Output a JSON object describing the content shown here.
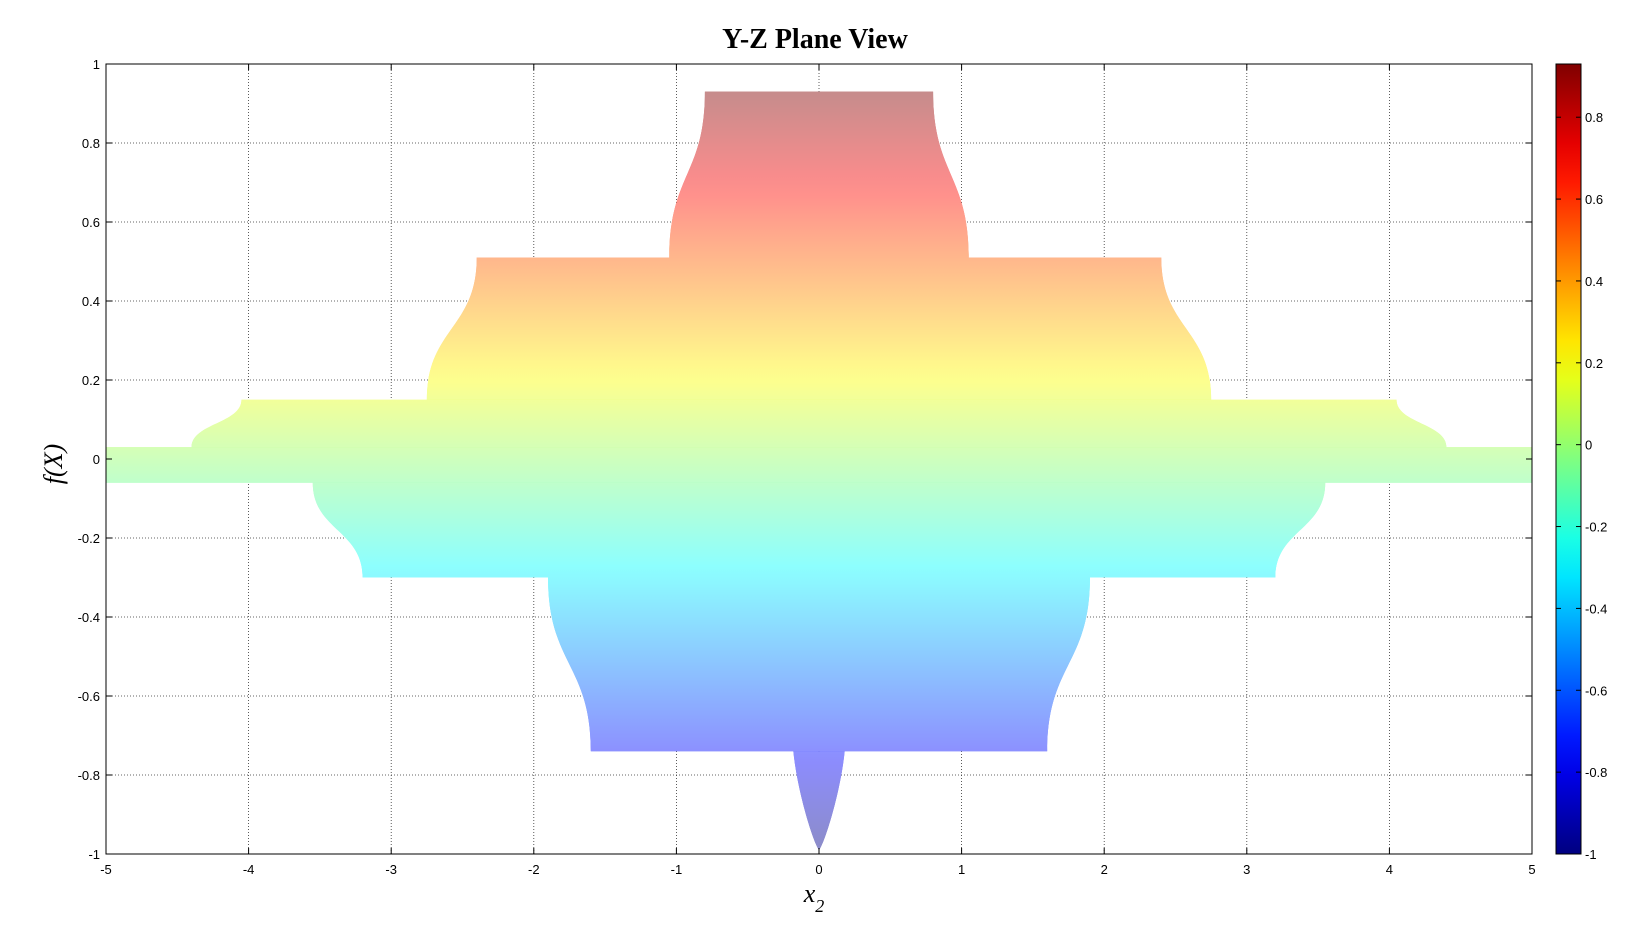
{
  "chart_data": {
    "type": "area",
    "title": "Y-Z Plane View",
    "xlabel": "x",
    "xlabel_subscript": "2",
    "ylabel": "f(X)",
    "xlim": [
      -5,
      5
    ],
    "ylim": [
      -1,
      1
    ],
    "grid": true,
    "x_ticks": [
      -5,
      -4,
      -3,
      -2,
      -1,
      0,
      1,
      2,
      3,
      4,
      5
    ],
    "x_tick_labels": [
      "-5",
      "-4",
      "-3",
      "-2",
      "-1",
      "0",
      "1",
      "2",
      "3",
      "4",
      "5"
    ],
    "y_ticks": [
      -1,
      -0.8,
      -0.6,
      -0.4,
      -0.2,
      0,
      0.2,
      0.4,
      0.6,
      0.8,
      1
    ],
    "y_tick_labels": [
      "-1",
      "-0.8",
      "-0.6",
      "-0.4",
      "-0.2",
      "0",
      "0.2",
      "0.4",
      "0.6",
      "0.8",
      "1"
    ],
    "colormap": "jet",
    "colorbar": {
      "range": [
        -1,
        0.93
      ],
      "ticks": [
        -1,
        -0.8,
        -0.6,
        -0.4,
        -0.2,
        0,
        0.2,
        0.4,
        0.6,
        0.8
      ],
      "tick_labels": [
        "-1",
        "-0.8",
        "-0.6",
        "-0.4",
        "-0.2",
        "0",
        "0.2",
        "0.4",
        "0.6",
        "0.8"
      ]
    },
    "bands": [
      {
        "bottom": -0.06,
        "top": 0.03,
        "x_top": [
          -5,
          5
        ],
        "x_bottom": [
          -5,
          5
        ]
      },
      {
        "bottom": 0.03,
        "top": 0.15,
        "x_top": [
          -4.05,
          4.05
        ],
        "x_bottom": [
          -4.4,
          4.4
        ]
      },
      {
        "bottom": -0.3,
        "top": -0.06,
        "x_top": [
          -3.55,
          3.55
        ],
        "x_bottom": [
          -3.2,
          3.2
        ]
      },
      {
        "bottom": 0.15,
        "top": 0.51,
        "x_top": [
          -2.4,
          2.4
        ],
        "x_bottom": [
          -2.75,
          2.75
        ]
      },
      {
        "bottom": -0.74,
        "top": -0.3,
        "x_top": [
          -1.9,
          1.9
        ],
        "x_bottom": [
          -1.6,
          1.6
        ]
      },
      {
        "bottom": 0.51,
        "top": 0.93,
        "x_top": [
          -0.8,
          0.8
        ],
        "x_bottom": [
          -1.05,
          1.05
        ]
      },
      {
        "bottom": -0.99,
        "top": -0.74,
        "x_top": [
          -0.18,
          0.18
        ],
        "x_bottom": [
          0,
          0
        ]
      }
    ]
  }
}
